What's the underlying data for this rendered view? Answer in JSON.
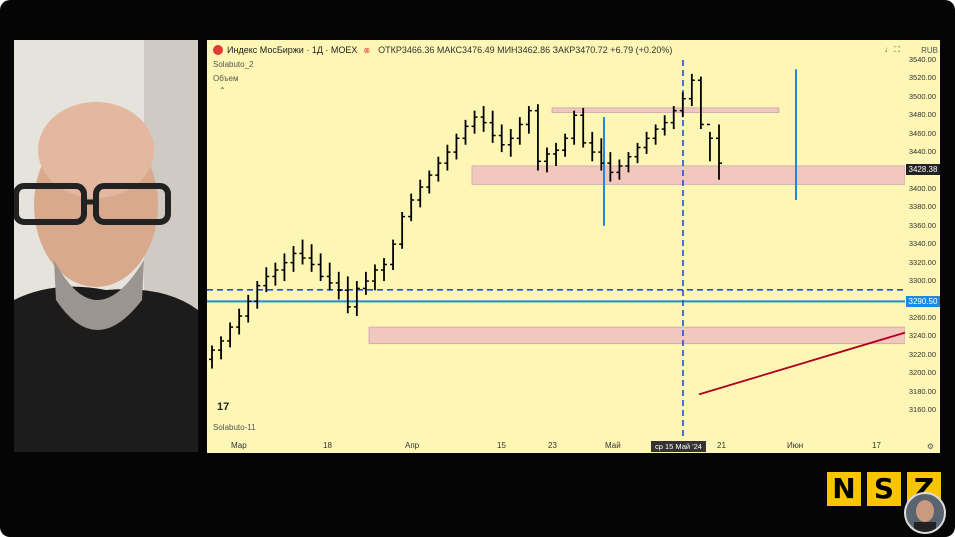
{
  "chart": {
    "title": "Индекс МосБиржи · 1Д · MOEX",
    "ohlc": "ОТКР3466.36  МАКС3476.49  МИН3462.86  ЗАКР3470.72  +6.79 (+0.20%)",
    "currency": "RUB",
    "indicator1": "Solabuto_2",
    "indicator2": "Объем",
    "bottom_indicator": "Solabuto-11",
    "tv_logo": "17",
    "price_labels": [
      "3540.00",
      "3520.00",
      "3500.00",
      "3480.00",
      "3460.00",
      "3440.00",
      "3420.00",
      "3400.00",
      "3380.00",
      "3360.00",
      "3340.00",
      "3320.00",
      "3300.00",
      "3280.00",
      "3260.00",
      "3240.00",
      "3220.00",
      "3200.00",
      "3180.00",
      "3160.00"
    ],
    "last_price_tag": "3428.38",
    "crosshair_price_tag": "3290.50",
    "time_labels": [
      "Мар",
      "18",
      "Апр",
      "15",
      "23",
      "Май",
      "21",
      "Июн",
      "17"
    ],
    "crosshair_time_tag": "ср 15 Май '24",
    "colors": {
      "up": "#000000",
      "blue": "#1e88e5",
      "zone": "#f2c7bd",
      "trend": "#b00020",
      "tag_blue": "#1565c0",
      "tag_dark": "#222222"
    }
  },
  "chart_data": {
    "type": "bar",
    "title": "Индекс МосБиржи · 1Д · MOEX",
    "ylim": [
      3160,
      3540
    ],
    "x": [
      "Мар",
      "18",
      "Апр",
      "15",
      "23",
      "Май",
      "21",
      "Июн",
      "17"
    ],
    "ohlc_series": [
      [
        3215,
        3230,
        3205,
        3225
      ],
      [
        3225,
        3240,
        3215,
        3235
      ],
      [
        3235,
        3255,
        3228,
        3250
      ],
      [
        3250,
        3270,
        3242,
        3262
      ],
      [
        3262,
        3285,
        3255,
        3278
      ],
      [
        3278,
        3300,
        3270,
        3295
      ],
      [
        3295,
        3315,
        3288,
        3305
      ],
      [
        3305,
        3320,
        3295,
        3312
      ],
      [
        3312,
        3330,
        3300,
        3320
      ],
      [
        3320,
        3338,
        3310,
        3330
      ],
      [
        3330,
        3345,
        3318,
        3325
      ],
      [
        3325,
        3340,
        3310,
        3318
      ],
      [
        3318,
        3330,
        3300,
        3305
      ],
      [
        3305,
        3320,
        3290,
        3298
      ],
      [
        3298,
        3310,
        3280,
        3290
      ],
      [
        3290,
        3305,
        3265,
        3272
      ],
      [
        3272,
        3300,
        3262,
        3292
      ],
      [
        3292,
        3310,
        3285,
        3300
      ],
      [
        3300,
        3318,
        3290,
        3312
      ],
      [
        3312,
        3325,
        3300,
        3318
      ],
      [
        3318,
        3345,
        3312,
        3340
      ],
      [
        3340,
        3375,
        3335,
        3370
      ],
      [
        3370,
        3395,
        3365,
        3388
      ],
      [
        3388,
        3410,
        3380,
        3402
      ],
      [
        3402,
        3420,
        3395,
        3415
      ],
      [
        3415,
        3435,
        3408,
        3428
      ],
      [
        3428,
        3448,
        3420,
        3440
      ],
      [
        3440,
        3460,
        3432,
        3455
      ],
      [
        3455,
        3475,
        3448,
        3468
      ],
      [
        3468,
        3485,
        3460,
        3478
      ],
      [
        3478,
        3490,
        3462,
        3472
      ],
      [
        3472,
        3485,
        3450,
        3458
      ],
      [
        3458,
        3470,
        3440,
        3448
      ],
      [
        3448,
        3465,
        3435,
        3455
      ],
      [
        3455,
        3478,
        3448,
        3470
      ],
      [
        3470,
        3490,
        3460,
        3485
      ],
      [
        3485,
        3492,
        3420,
        3430
      ],
      [
        3430,
        3445,
        3418,
        3438
      ],
      [
        3438,
        3450,
        3425,
        3442
      ],
      [
        3442,
        3460,
        3435,
        3455
      ],
      [
        3455,
        3485,
        3448,
        3480
      ],
      [
        3480,
        3488,
        3445,
        3450
      ],
      [
        3450,
        3462,
        3430,
        3440
      ],
      [
        3440,
        3455,
        3420,
        3428
      ],
      [
        3428,
        3440,
        3408,
        3418
      ],
      [
        3418,
        3432,
        3410,
        3425
      ],
      [
        3425,
        3440,
        3418,
        3435
      ],
      [
        3435,
        3450,
        3428,
        3445
      ],
      [
        3445,
        3462,
        3438,
        3455
      ],
      [
        3455,
        3470,
        3448,
        3465
      ],
      [
        3465,
        3480,
        3458,
        3472
      ],
      [
        3472,
        3490,
        3465,
        3485
      ],
      [
        3485,
        3505,
        3478,
        3498
      ],
      [
        3498,
        3525,
        3490,
        3518
      ],
      [
        3518,
        3522,
        3465,
        3470
      ],
      [
        3470,
        3462,
        3430,
        3455
      ],
      [
        3455,
        3470,
        3410,
        3428
      ]
    ],
    "horizontal_levels": [
      3290.5,
      3278
    ],
    "zones": [
      [
        3405,
        3425
      ],
      [
        3483,
        3488
      ],
      [
        3232,
        3250
      ]
    ]
  },
  "brand": {
    "letters": [
      "N",
      "S",
      "Z"
    ]
  }
}
